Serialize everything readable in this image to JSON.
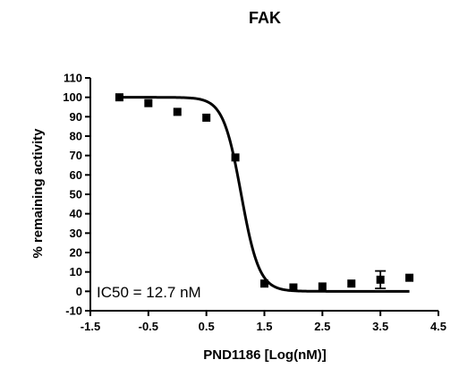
{
  "chart_data": {
    "type": "scatter",
    "title": "FAK",
    "xlabel": "PND1186 [Log(nM)]",
    "ylabel": "% remaining activity",
    "xlim": [
      -1.5,
      4.5
    ],
    "ylim": [
      -10,
      110
    ],
    "xticks": [
      "-1.5",
      "-0.5",
      "0.5",
      "1.5",
      "2.5",
      "3.5",
      "4.5"
    ],
    "yticks": [
      "-10",
      "0",
      "10",
      "20",
      "30",
      "40",
      "50",
      "60",
      "70",
      "80",
      "90",
      "100",
      "110"
    ],
    "annotation": "IC50 = 12.7 nM",
    "series": [
      {
        "points": [
          {
            "x": -1.0,
            "y": 100
          },
          {
            "x": -0.5,
            "y": 97
          },
          {
            "x": 0.0,
            "y": 92.5
          },
          {
            "x": 0.5,
            "y": 89.5
          },
          {
            "x": 1.0,
            "y": 69
          },
          {
            "x": 1.5,
            "y": 4
          },
          {
            "x": 2.0,
            "y": 2
          },
          {
            "x": 2.5,
            "y": 2.5
          },
          {
            "x": 3.0,
            "y": 4
          },
          {
            "x": 3.5,
            "y": 6,
            "err": 4.5
          },
          {
            "x": 4.0,
            "y": 7
          }
        ]
      }
    ],
    "fit": {
      "type": "sigmoid",
      "top": 100,
      "bottom": 0,
      "logIC50": 1.1,
      "hill": 2.8,
      "range": [
        -1.0,
        4.0
      ]
    },
    "grid": false,
    "marker": "square",
    "color": "#000000"
  }
}
